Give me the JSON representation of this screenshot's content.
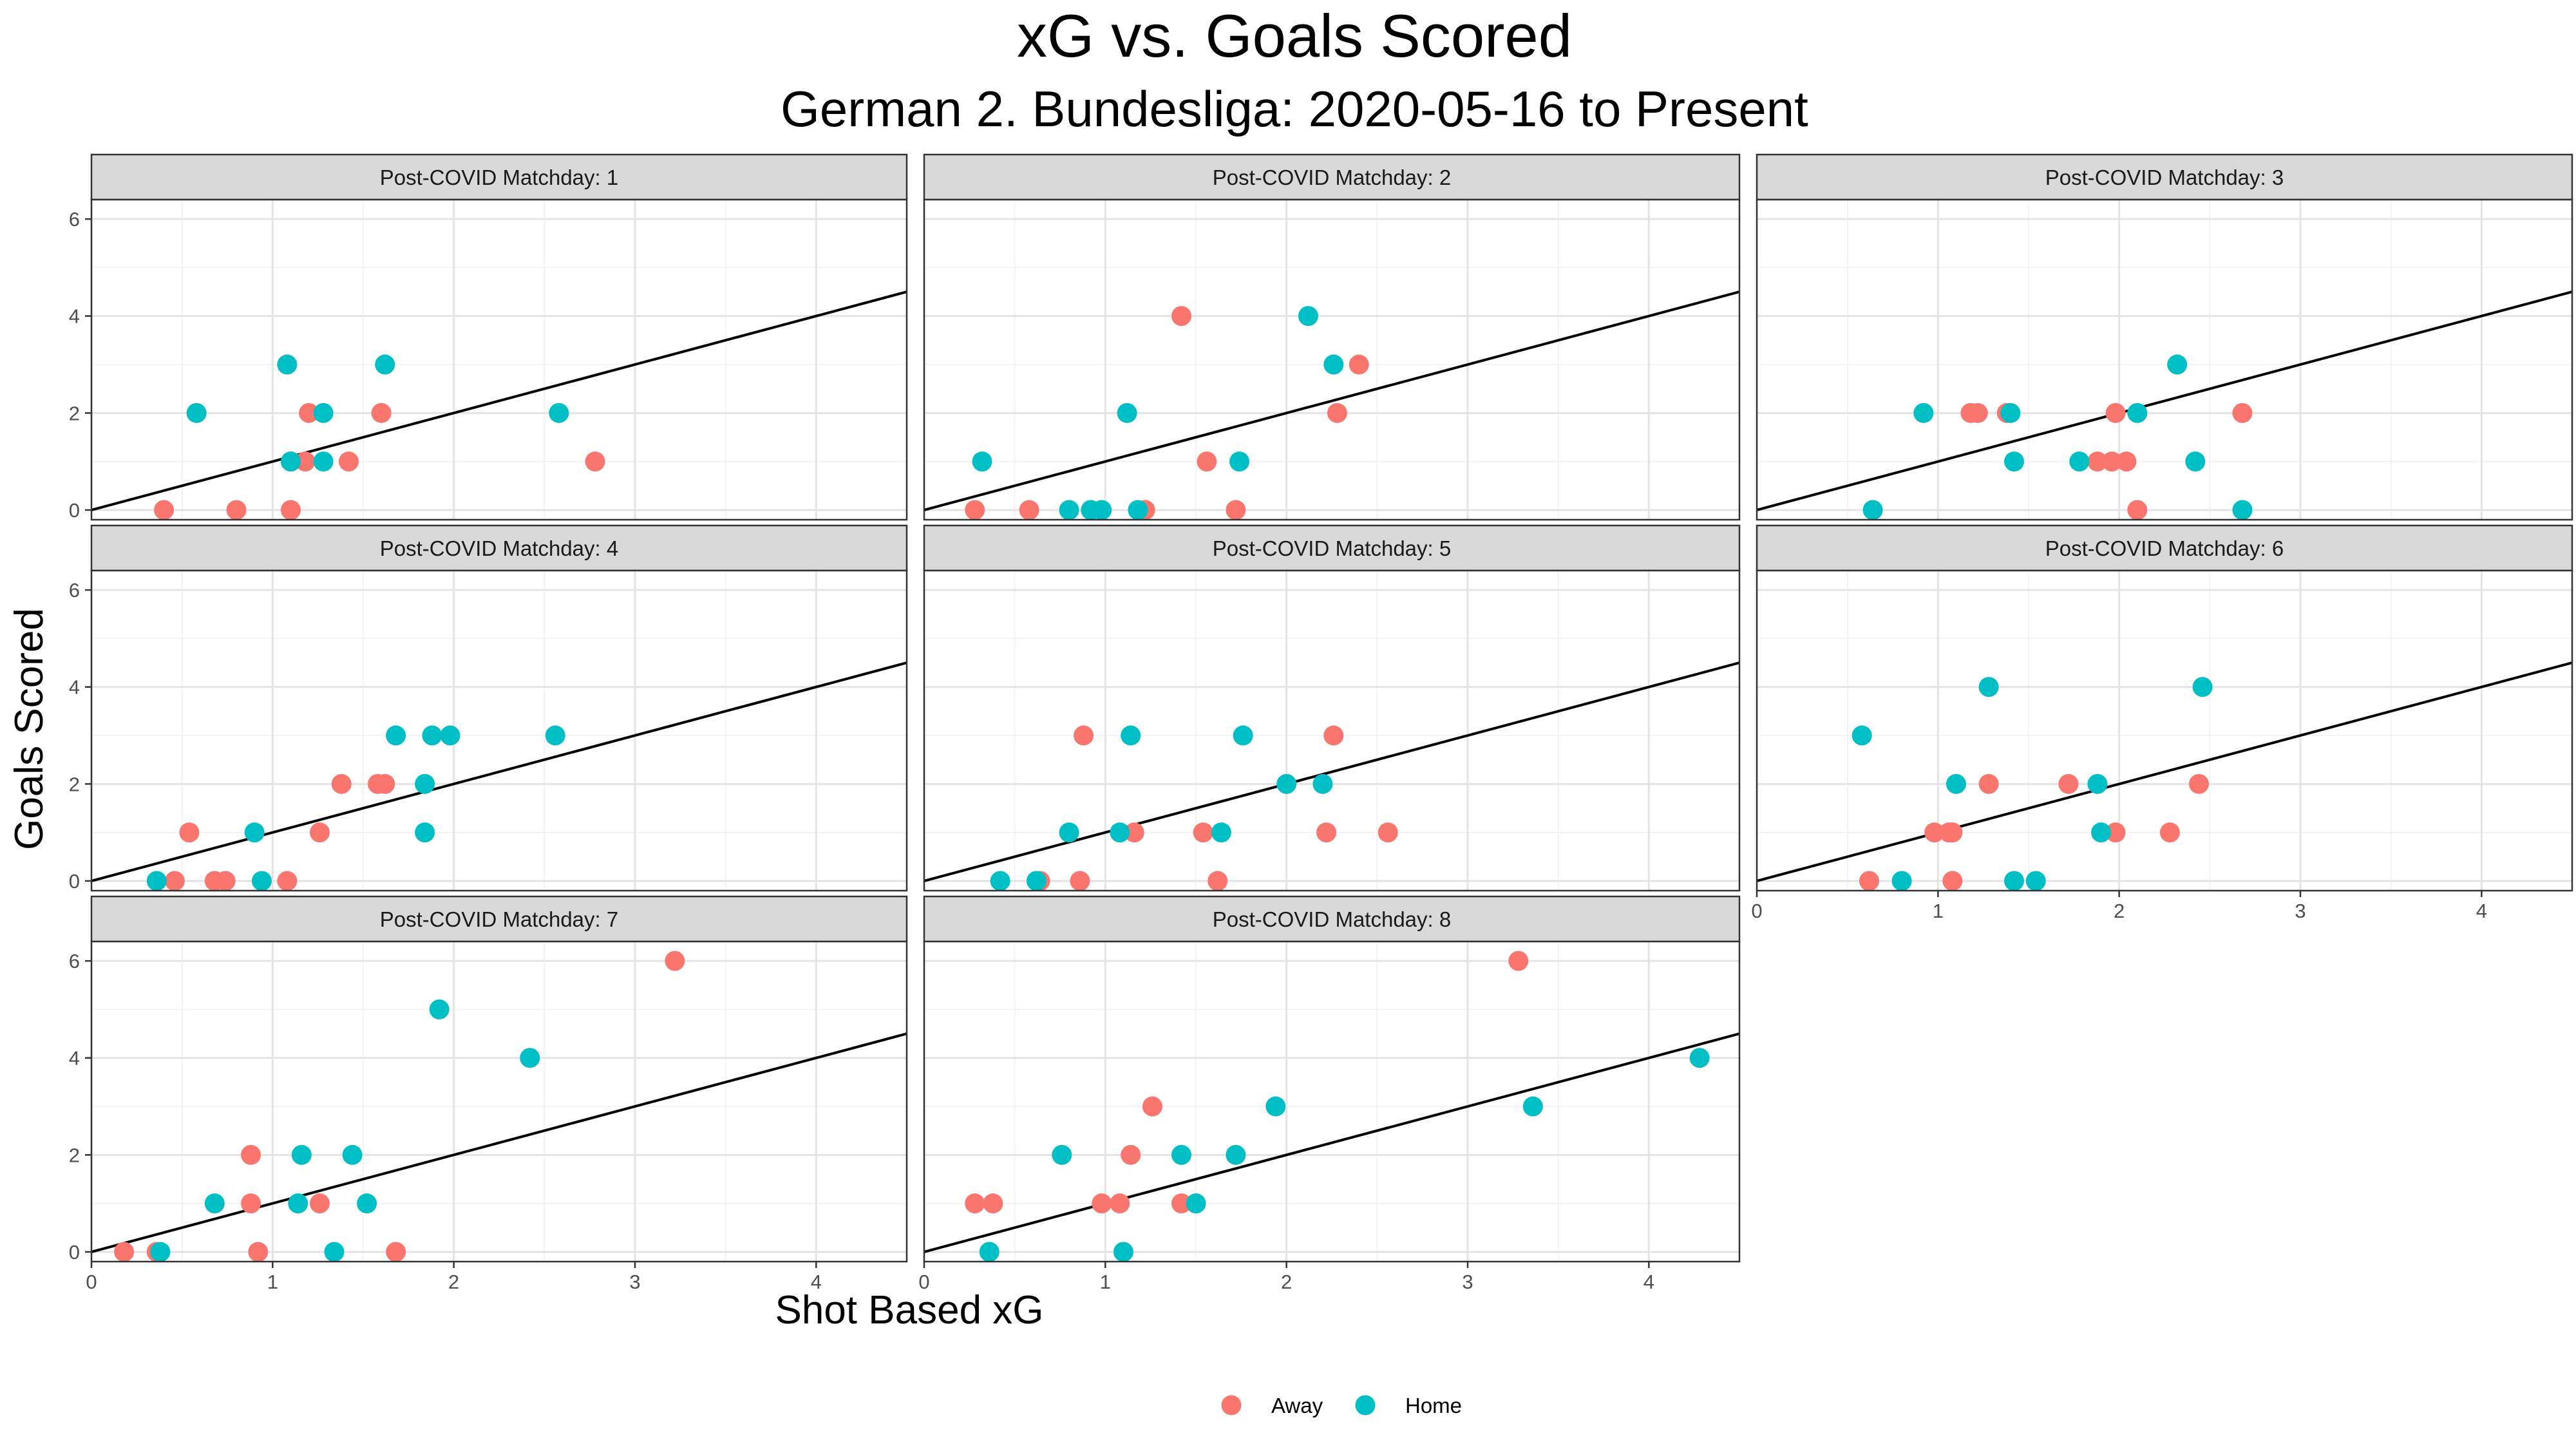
{
  "chart_data": {
    "type": "scatter",
    "title": "xG vs. Goals Scored",
    "subtitle": "German 2. Bundesliga: 2020-05-16 to Present",
    "xlabel": "Shot Based xG",
    "ylabel": "Goals Scored",
    "xlim": [
      0,
      4.5
    ],
    "ylim": [
      -0.2,
      6.4
    ],
    "x_ticks": [
      "0",
      "1",
      "2",
      "3",
      "4"
    ],
    "y_ticks": [
      "0",
      "2",
      "4",
      "6"
    ],
    "grid": true,
    "reference_line": {
      "slope": 1,
      "intercept": 0
    },
    "legend": {
      "position": "bottom",
      "entries": [
        {
          "name": "Away",
          "color": "#F8766D"
        },
        {
          "name": "Home",
          "color": "#00BFC4"
        }
      ]
    },
    "panels": [
      {
        "label": "Post-COVID Matchday: 1",
        "series": [
          {
            "name": "Away",
            "points": [
              [
                0.4,
                0
              ],
              [
                0.8,
                0
              ],
              [
                1.1,
                0
              ],
              [
                1.1,
                1
              ],
              [
                1.18,
                1
              ],
              [
                1.2,
                2
              ],
              [
                1.42,
                1
              ],
              [
                1.6,
                2
              ],
              [
                2.78,
                1
              ]
            ]
          },
          {
            "name": "Home",
            "points": [
              [
                0.58,
                2
              ],
              [
                1.08,
                3
              ],
              [
                1.1,
                1
              ],
              [
                1.28,
                2
              ],
              [
                1.28,
                1
              ],
              [
                1.62,
                3
              ],
              [
                2.58,
                2
              ]
            ]
          }
        ]
      },
      {
        "label": "Post-COVID Matchday: 2",
        "series": [
          {
            "name": "Away",
            "points": [
              [
                0.28,
                0
              ],
              [
                0.58,
                0
              ],
              [
                1.22,
                0
              ],
              [
                1.42,
                4
              ],
              [
                1.56,
                1
              ],
              [
                1.72,
                0
              ],
              [
                2.28,
                2
              ],
              [
                2.4,
                3
              ]
            ]
          },
          {
            "name": "Home",
            "points": [
              [
                0.32,
                1
              ],
              [
                0.8,
                0
              ],
              [
                0.92,
                0
              ],
              [
                0.98,
                0
              ],
              [
                1.12,
                2
              ],
              [
                1.18,
                0
              ],
              [
                1.74,
                1
              ],
              [
                2.12,
                4
              ],
              [
                2.26,
                3
              ]
            ]
          }
        ]
      },
      {
        "label": "Post-COVID Matchday: 3",
        "series": [
          {
            "name": "Away",
            "points": [
              [
                1.18,
                2
              ],
              [
                1.22,
                2
              ],
              [
                1.38,
                2
              ],
              [
                1.88,
                1
              ],
              [
                1.96,
                1
              ],
              [
                1.98,
                2
              ],
              [
                2.04,
                1
              ],
              [
                2.1,
                0
              ],
              [
                2.68,
                2
              ]
            ]
          },
          {
            "name": "Home",
            "points": [
              [
                0.64,
                0
              ],
              [
                0.92,
                2
              ],
              [
                1.4,
                2
              ],
              [
                1.42,
                1
              ],
              [
                1.78,
                1
              ],
              [
                2.1,
                2
              ],
              [
                2.32,
                3
              ],
              [
                2.42,
                1
              ],
              [
                2.68,
                0
              ]
            ]
          }
        ]
      },
      {
        "label": "Post-COVID Matchday: 4",
        "series": [
          {
            "name": "Away",
            "points": [
              [
                0.46,
                0
              ],
              [
                0.54,
                1
              ],
              [
                0.68,
                0
              ],
              [
                0.74,
                0
              ],
              [
                1.08,
                0
              ],
              [
                1.26,
                1
              ],
              [
                1.38,
                2
              ],
              [
                1.58,
                2
              ],
              [
                1.62,
                2
              ]
            ]
          },
          {
            "name": "Home",
            "points": [
              [
                0.36,
                0
              ],
              [
                0.9,
                1
              ],
              [
                0.94,
                0
              ],
              [
                1.68,
                3
              ],
              [
                1.84,
                2
              ],
              [
                1.84,
                1
              ],
              [
                1.88,
                3
              ],
              [
                1.98,
                3
              ],
              [
                2.56,
                3
              ]
            ]
          }
        ]
      },
      {
        "label": "Post-COVID Matchday: 5",
        "series": [
          {
            "name": "Away",
            "points": [
              [
                0.64,
                0
              ],
              [
                0.86,
                0
              ],
              [
                0.88,
                3
              ],
              [
                1.16,
                1
              ],
              [
                1.54,
                1
              ],
              [
                1.62,
                0
              ],
              [
                2.22,
                1
              ],
              [
                2.26,
                3
              ],
              [
                2.56,
                1
              ]
            ]
          },
          {
            "name": "Home",
            "points": [
              [
                0.42,
                0
              ],
              [
                0.62,
                0
              ],
              [
                0.8,
                1
              ],
              [
                1.08,
                1
              ],
              [
                1.14,
                3
              ],
              [
                1.64,
                1
              ],
              [
                1.76,
                3
              ],
              [
                2.0,
                2
              ],
              [
                2.2,
                2
              ]
            ]
          }
        ]
      },
      {
        "label": "Post-COVID Matchday: 6",
        "series": [
          {
            "name": "Away",
            "points": [
              [
                0.62,
                0
              ],
              [
                0.98,
                1
              ],
              [
                1.06,
                1
              ],
              [
                1.08,
                1
              ],
              [
                1.08,
                0
              ],
              [
                1.28,
                2
              ],
              [
                1.72,
                2
              ],
              [
                1.98,
                1
              ],
              [
                2.28,
                1
              ],
              [
                2.44,
                2
              ]
            ]
          },
          {
            "name": "Home",
            "points": [
              [
                0.58,
                3
              ],
              [
                0.8,
                0
              ],
              [
                1.1,
                2
              ],
              [
                1.28,
                4
              ],
              [
                1.42,
                0
              ],
              [
                1.54,
                0
              ],
              [
                1.88,
                2
              ],
              [
                1.9,
                1
              ],
              [
                2.46,
                4
              ]
            ]
          }
        ]
      },
      {
        "label": "Post-COVID Matchday: 7",
        "series": [
          {
            "name": "Away",
            "points": [
              [
                0.18,
                0
              ],
              [
                0.36,
                0
              ],
              [
                0.88,
                1
              ],
              [
                0.88,
                2
              ],
              [
                0.92,
                0
              ],
              [
                1.26,
                1
              ],
              [
                1.68,
                0
              ],
              [
                3.22,
                6
              ]
            ]
          },
          {
            "name": "Home",
            "points": [
              [
                0.38,
                0
              ],
              [
                0.68,
                1
              ],
              [
                1.14,
                1
              ],
              [
                1.16,
                2
              ],
              [
                1.34,
                0
              ],
              [
                1.44,
                2
              ],
              [
                1.52,
                1
              ],
              [
                1.92,
                5
              ],
              [
                2.42,
                4
              ]
            ]
          }
        ]
      },
      {
        "label": "Post-COVID Matchday: 8",
        "series": [
          {
            "name": "Away",
            "points": [
              [
                0.28,
                1
              ],
              [
                0.38,
                1
              ],
              [
                0.98,
                1
              ],
              [
                1.08,
                1
              ],
              [
                1.14,
                2
              ],
              [
                1.26,
                3
              ],
              [
                1.42,
                1
              ],
              [
                1.5,
                1
              ],
              [
                3.28,
                6
              ]
            ]
          },
          {
            "name": "Home",
            "points": [
              [
                0.36,
                0
              ],
              [
                0.76,
                2
              ],
              [
                1.1,
                0
              ],
              [
                1.42,
                2
              ],
              [
                1.5,
                1
              ],
              [
                1.72,
                2
              ],
              [
                1.94,
                3
              ],
              [
                3.36,
                3
              ],
              [
                4.28,
                4
              ]
            ]
          }
        ]
      }
    ]
  }
}
